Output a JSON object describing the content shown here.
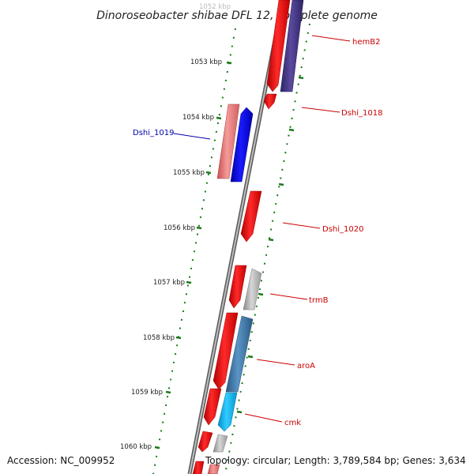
{
  "title": "Dinoroseobacter shibae DFL 12, complete genome",
  "accession": "Accession: NC_009952",
  "summary": "Topology: circular; Length: 3,789,584 bp; Genes: 3,634",
  "kbp_labels": [
    "1052 kbp",
    "1053 kbp",
    "1054 kbp",
    "1055 kbp",
    "1056 kbp",
    "1057 kbp",
    "1058 kbp",
    "1059 kbp",
    "1060 kbp"
  ],
  "gene_labels": [
    {
      "name": "hemB2",
      "color": "#cc0000"
    },
    {
      "name": "Dshi_1018",
      "color": "#cc0000"
    },
    {
      "name": "Dshi_1019",
      "color": "#0000aa"
    },
    {
      "name": "Dshi_1020",
      "color": "#cc0000"
    },
    {
      "name": "trmB",
      "color": "#cc0000"
    },
    {
      "name": "aroA",
      "color": "#cc0000"
    },
    {
      "name": "cmk",
      "color": "#cc0000"
    }
  ],
  "colors": {
    "backbone": "#888888",
    "ticks": "#1a7a1a",
    "red_gene": "#ff0000",
    "blue_gene": "#0000ff",
    "purple_gene": "#4a3a8a",
    "pink_gene": "#f08080",
    "grey_gene": "#b8b8b8",
    "steel_gene": "#4682b4",
    "cyan_gene": "#00bfff"
  }
}
